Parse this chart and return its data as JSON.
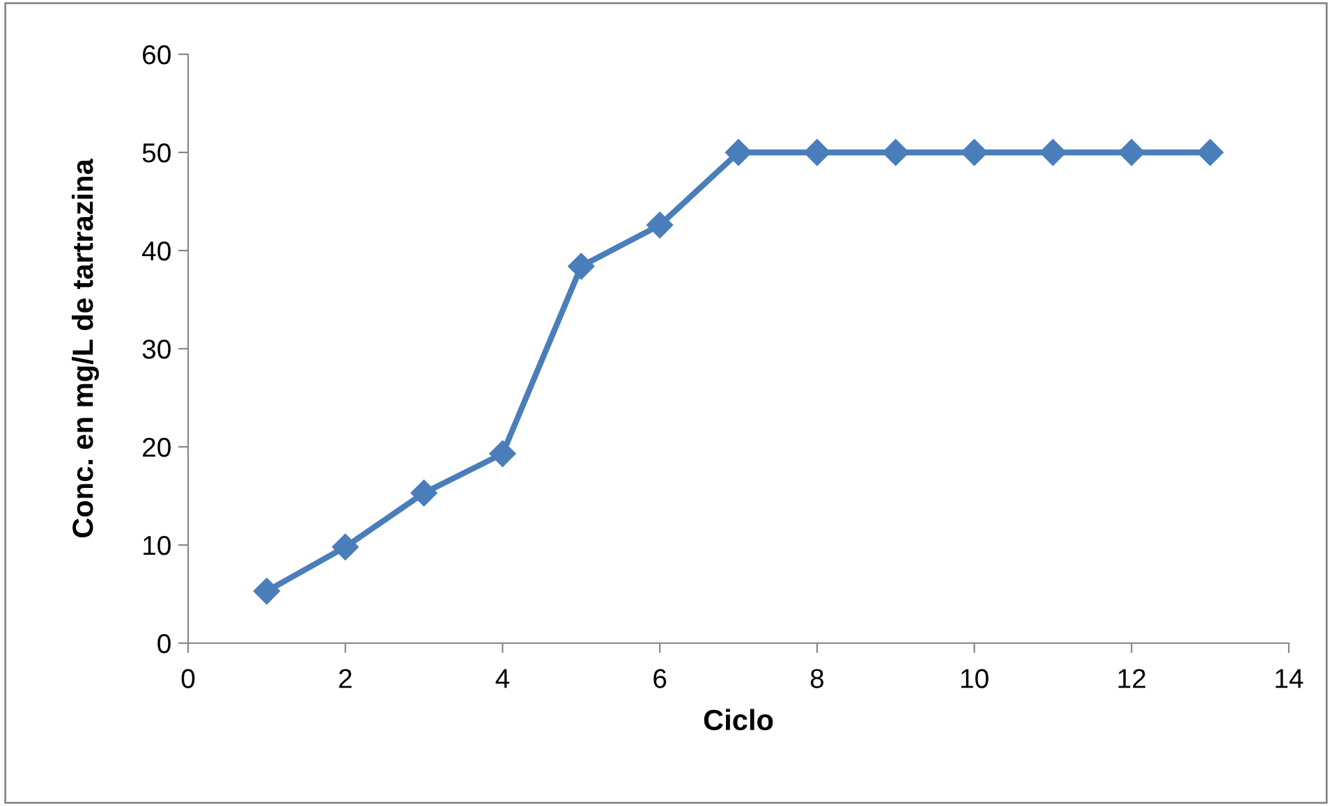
{
  "chart_data": {
    "type": "line",
    "xlabel": "Ciclo",
    "ylabel": "Conc. en mg/L de tartrazina",
    "x": [
      1,
      2,
      3,
      4,
      5,
      6,
      7,
      8,
      9,
      10,
      11,
      12,
      13
    ],
    "series": [
      {
        "color": "#4a7ebb",
        "values": [
          5.3,
          9.8,
          15.3,
          19.3,
          38.4,
          42.6,
          50,
          50,
          50,
          50,
          50,
          50,
          50
        ]
      }
    ],
    "xlim": [
      0,
      14
    ],
    "xticks": [
      0,
      2,
      4,
      6,
      8,
      10,
      12,
      14
    ],
    "ylim": [
      0,
      60
    ],
    "yticks": [
      0,
      10,
      20,
      30,
      40,
      50,
      60
    ],
    "grid": false,
    "legend": false,
    "marker": "diamond",
    "line_style": "solid"
  }
}
